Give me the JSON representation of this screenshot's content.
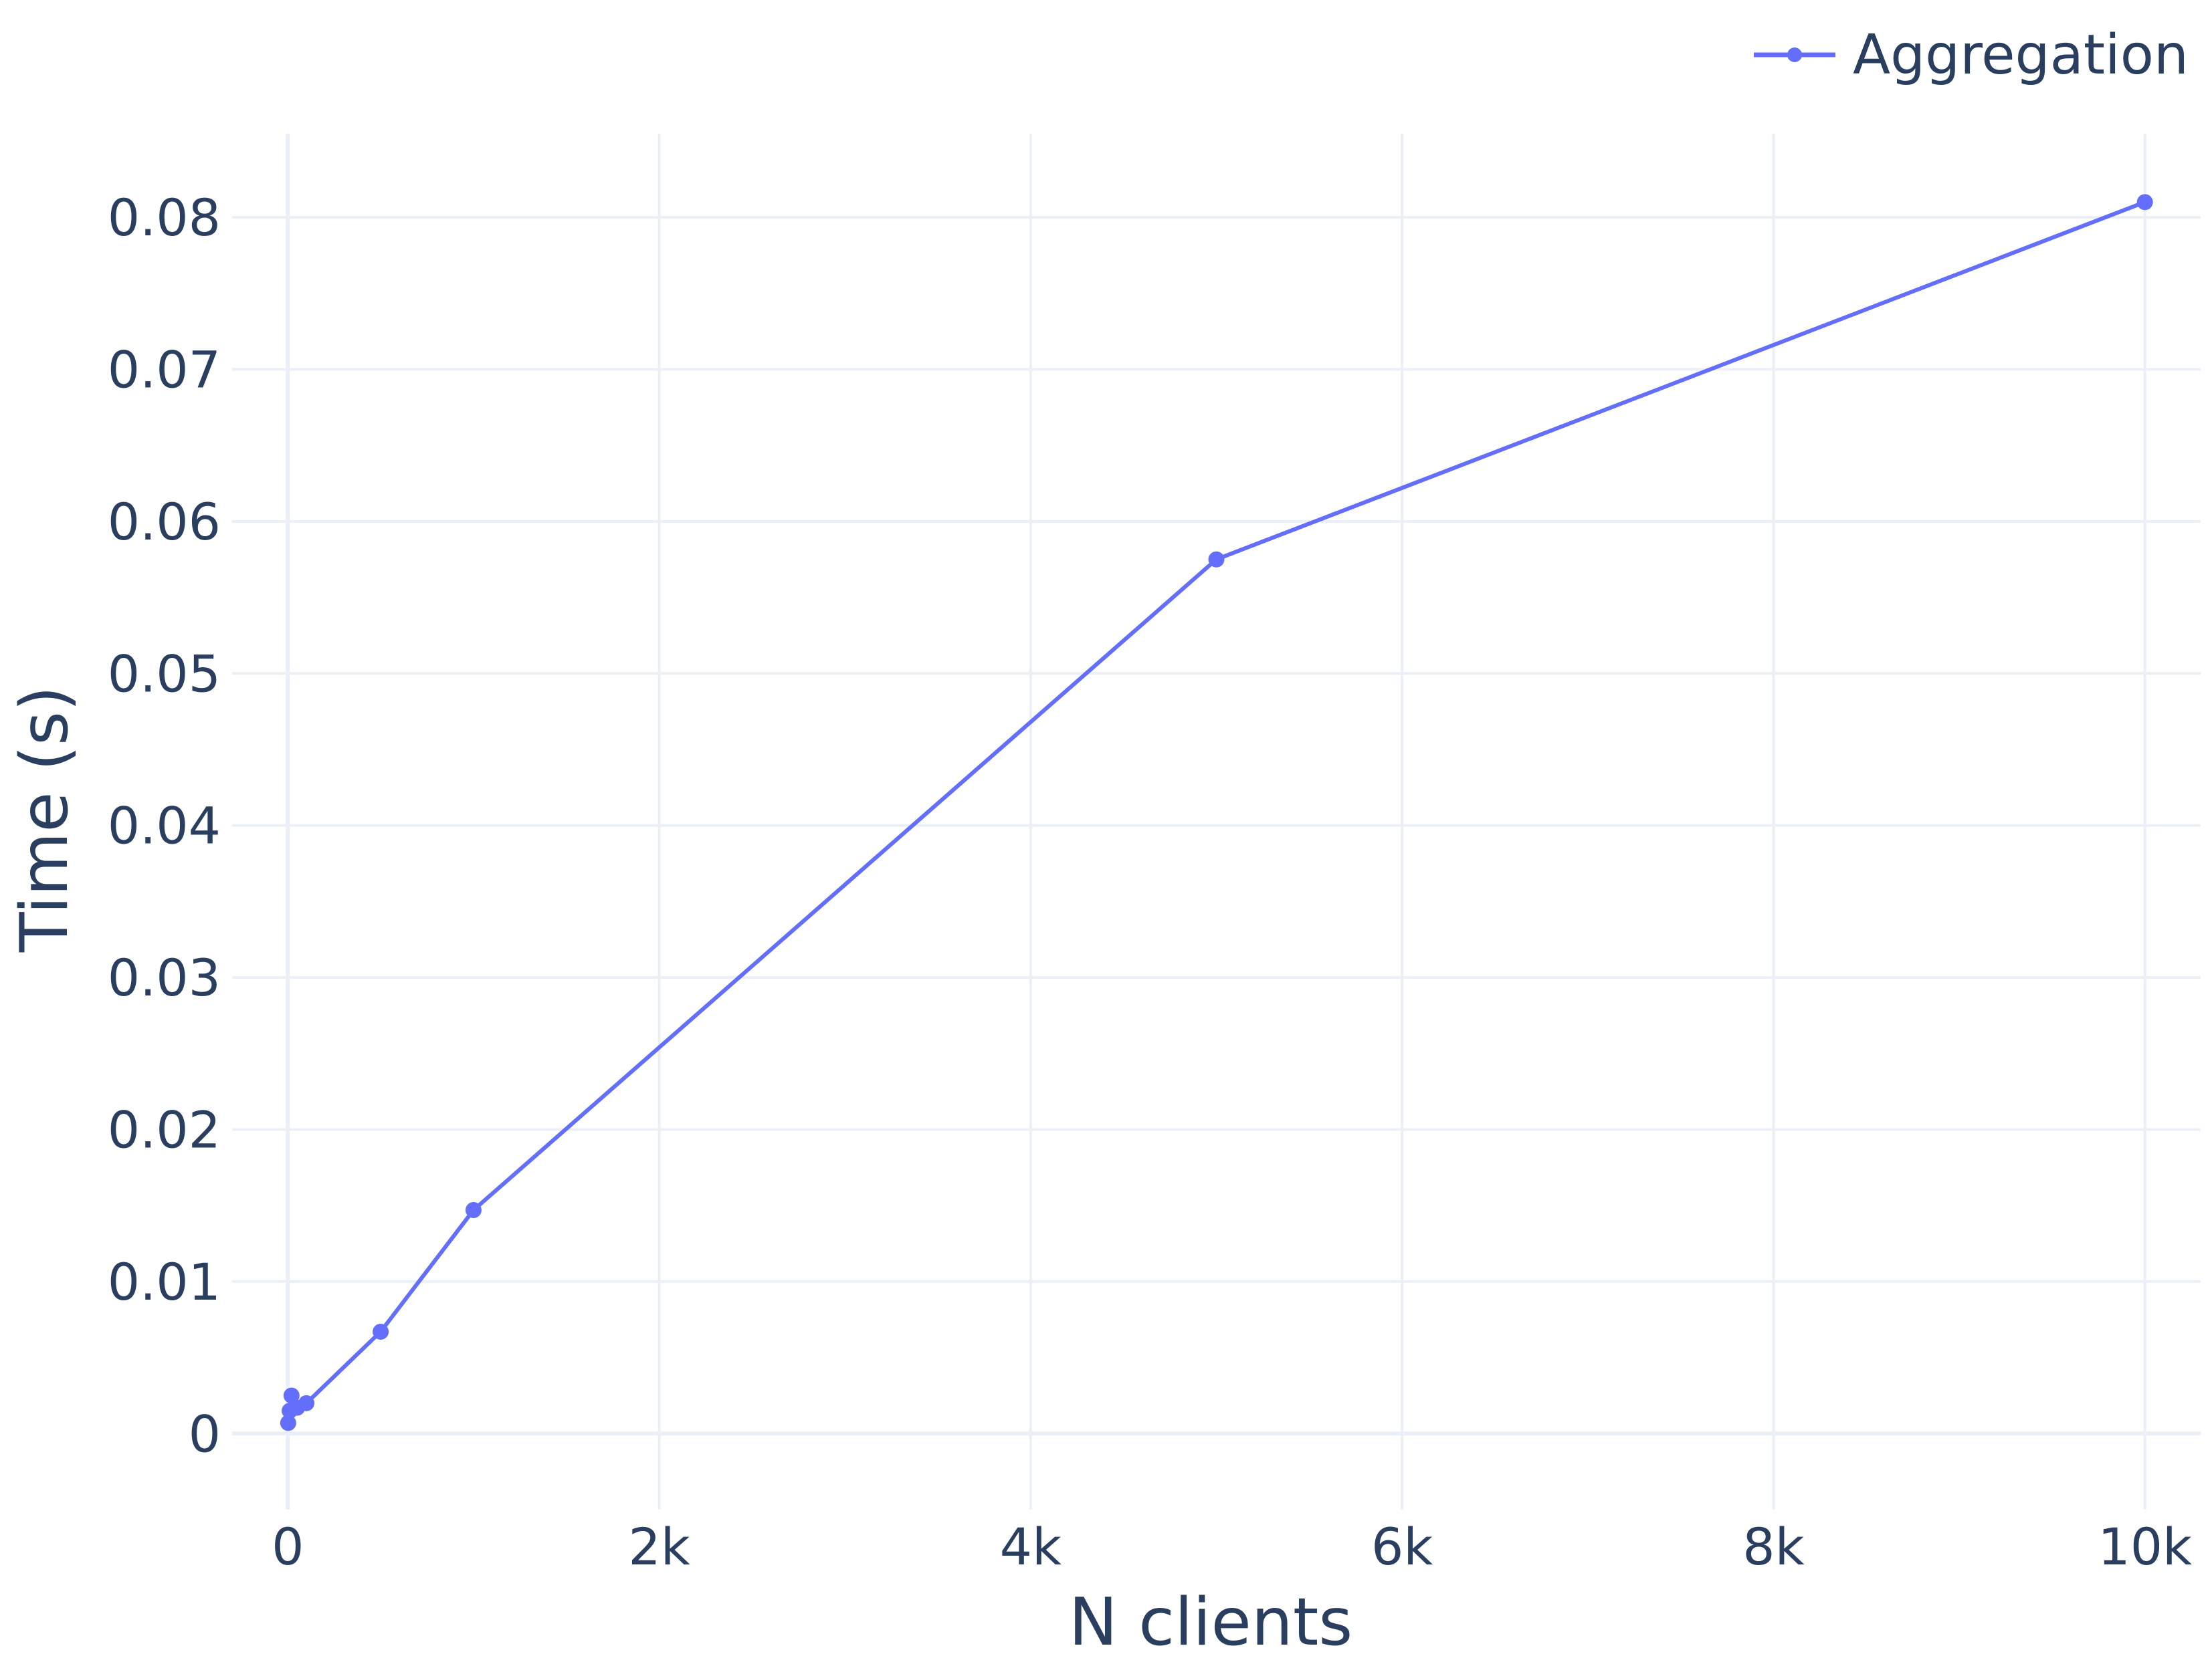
{
  "chart_data": {
    "type": "line",
    "xlabel": "N clients",
    "ylabel": "Time (s)",
    "xlim": [
      -300,
      10300
    ],
    "ylim": [
      -0.005,
      0.0855
    ],
    "x_ticks": [
      {
        "value": 0,
        "label": "0"
      },
      {
        "value": 2000,
        "label": "2k"
      },
      {
        "value": 4000,
        "label": "4k"
      },
      {
        "value": 6000,
        "label": "6k"
      },
      {
        "value": 8000,
        "label": "8k"
      },
      {
        "value": 10000,
        "label": "10k"
      }
    ],
    "y_ticks": [
      {
        "value": 0,
        "label": "0"
      },
      {
        "value": 0.01,
        "label": "0.01"
      },
      {
        "value": 0.02,
        "label": "0.02"
      },
      {
        "value": 0.03,
        "label": "0.03"
      },
      {
        "value": 0.04,
        "label": "0.04"
      },
      {
        "value": 0.05,
        "label": "0.05"
      },
      {
        "value": 0.06,
        "label": "0.06"
      },
      {
        "value": 0.07,
        "label": "0.07"
      },
      {
        "value": 0.08,
        "label": "0.08"
      }
    ],
    "grid": true,
    "legend_position": "top-right",
    "series": [
      {
        "name": "Aggregation",
        "color": "#636efa",
        "x": [
          2,
          10,
          20,
          50,
          100,
          500,
          1000,
          5000,
          10000
        ],
        "y": [
          0.0007,
          0.0015,
          0.0025,
          0.0017,
          0.002,
          0.0067,
          0.0147,
          0.0575,
          0.081
        ]
      }
    ]
  }
}
